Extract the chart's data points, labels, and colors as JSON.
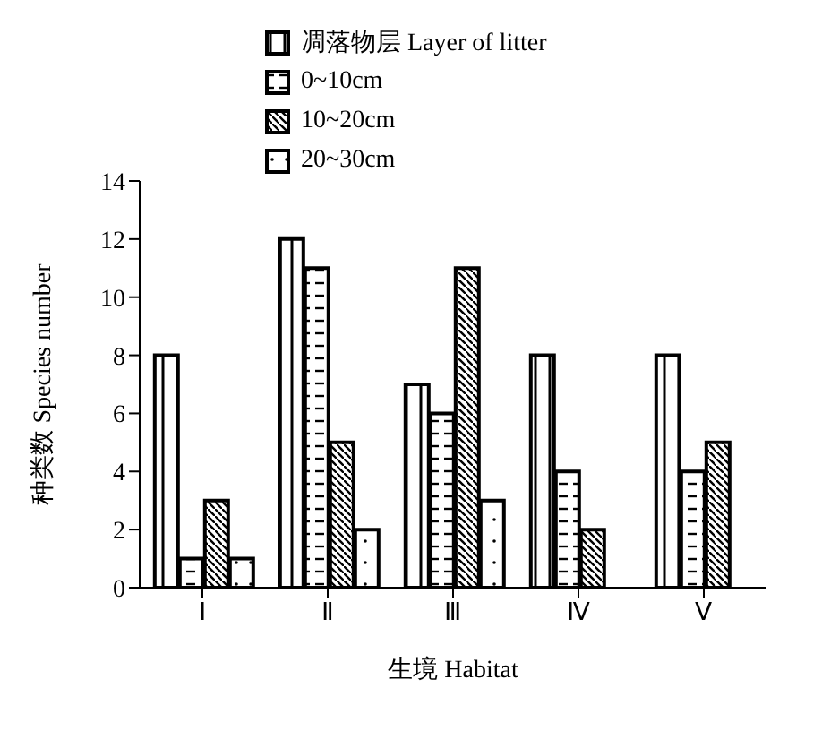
{
  "chart_data": {
    "type": "bar",
    "xlabel": "生境 Habitat",
    "ylabel": "种类数 Species number",
    "categories": [
      "Ⅰ",
      "Ⅱ",
      "Ⅲ",
      "Ⅳ",
      "Ⅴ"
    ],
    "series": [
      {
        "name": "凋落物层 Layer of litter",
        "color": "#000000",
        "values": [
          8,
          12,
          7,
          8,
          8
        ]
      },
      {
        "name": "0~10cm",
        "color": "#000000",
        "values": [
          1,
          11,
          6,
          4,
          4
        ]
      },
      {
        "name": "10~20cm",
        "color": "#000000",
        "values": [
          3,
          5,
          11,
          2,
          5
        ]
      },
      {
        "name": "20~30cm",
        "color": "#000000",
        "values": [
          1,
          2,
          3,
          null,
          null
        ]
      }
    ],
    "ylim": [
      0,
      14
    ],
    "yticks": [
      0,
      2,
      4,
      6,
      8,
      10,
      12,
      14
    ],
    "grid": false,
    "legend": "top"
  }
}
